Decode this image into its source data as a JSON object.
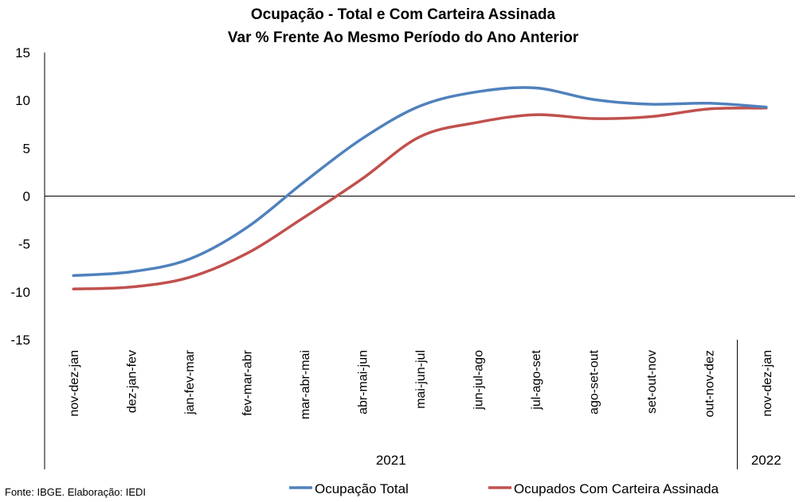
{
  "chart_data": {
    "type": "line",
    "title": "Ocupação - Total e Com Carteira Assinada",
    "subtitle": "Var % Frente Ao Mesmo Período do Ano Anterior",
    "categories": [
      "nov-dez-jan",
      "dez-jan-fev",
      "jan-fev-mar",
      "fev-mar-abr",
      "mar-abr-mai",
      "abr-mai-jun",
      "mai-jun-jul",
      "jun-jul-ago",
      "jul-ago-set",
      "ago-set-out",
      "set-out-nov",
      "out-nov-dez",
      "nov-dez-jan"
    ],
    "year_groups": [
      {
        "label": "2021",
        "start": 0,
        "end": 11
      },
      {
        "label": "2022",
        "start": 12,
        "end": 12
      }
    ],
    "series": [
      {
        "name": "Ocupação Total",
        "color": "#4f81bd",
        "values": [
          -8.3,
          -7.9,
          -6.6,
          -3.3,
          1.5,
          6.0,
          9.4,
          10.9,
          11.3,
          10.1,
          9.6,
          9.7,
          9.3
        ]
      },
      {
        "name": "Ocupados Com Carteira Assinada",
        "color": "#c0504d",
        "values": [
          -9.7,
          -9.5,
          -8.5,
          -6.0,
          -2.2,
          1.8,
          6.2,
          7.7,
          8.5,
          8.1,
          8.3,
          9.1,
          9.2
        ]
      }
    ],
    "y_ticks": [
      "15",
      "10",
      "5",
      "0",
      "-5",
      "-10",
      "-15"
    ],
    "ylim": [
      -15,
      15
    ],
    "grid": false,
    "legend_position": "bottom"
  },
  "source_note": "Fonte: IBGE. Elaboração: IEDI"
}
